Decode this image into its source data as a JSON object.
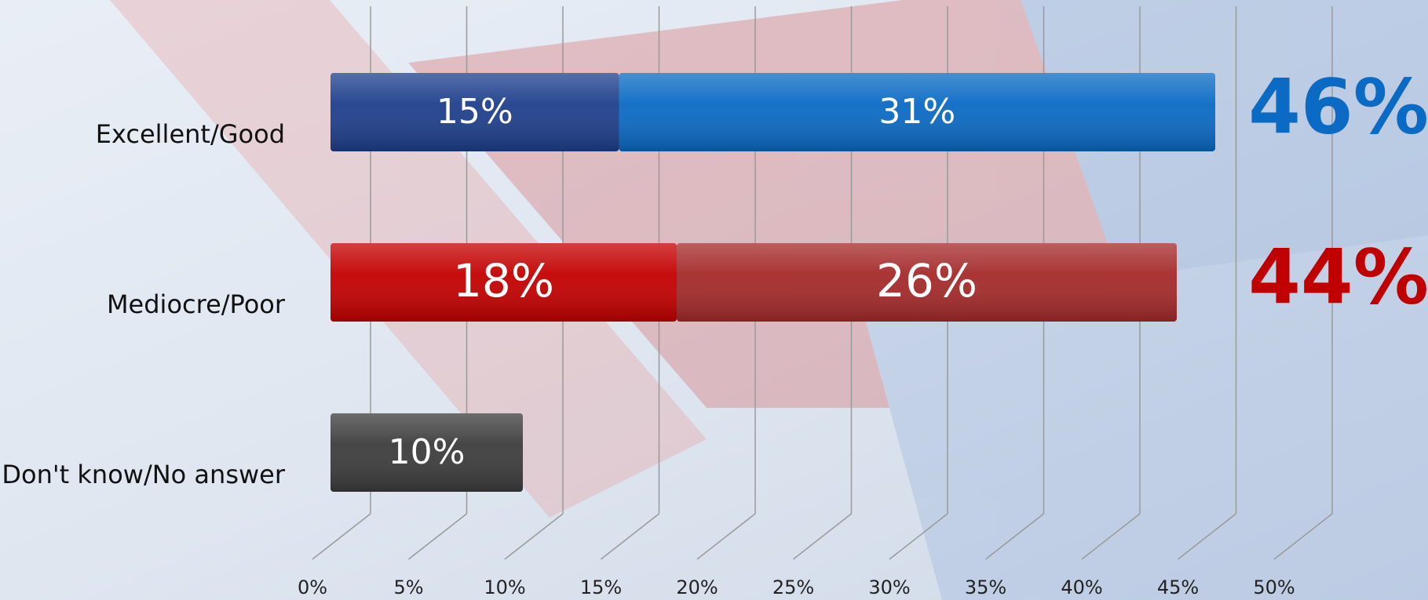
{
  "chart_data": {
    "type": "stacked-bar-horizontal",
    "categories": [
      "Excellent/Good",
      "Mediocre/Poor",
      "Don't know/No answer"
    ],
    "series": [
      {
        "colors": [
          "#1e3f8c",
          "#c40000",
          "#3c3c3c"
        ],
        "values": [
          15,
          18,
          10
        ],
        "value_labels": [
          "15%",
          "18%",
          "10%"
        ]
      },
      {
        "colors": [
          "#0a6ac4",
          "#a52a2a",
          null
        ],
        "values": [
          31,
          26,
          null
        ],
        "value_labels": [
          "31%",
          "26%",
          null
        ]
      }
    ],
    "totals": [
      46,
      44,
      null
    ],
    "total_labels": [
      "46%",
      "44%",
      null
    ],
    "total_colors": [
      "#0a6ac4",
      "#c00000",
      null
    ],
    "xlim": [
      0,
      50
    ],
    "xticks": [
      {
        "value": 0,
        "label": "0%"
      },
      {
        "value": 5,
        "label": "5%"
      },
      {
        "value": 10,
        "label": "10%"
      },
      {
        "value": 15,
        "label": "15%"
      },
      {
        "value": 20,
        "label": "20%"
      },
      {
        "value": 25,
        "label": "25%"
      },
      {
        "value": 30,
        "label": "30%"
      },
      {
        "value": 35,
        "label": "35%"
      },
      {
        "value": 40,
        "label": "40%"
      },
      {
        "value": 45,
        "label": "45%"
      },
      {
        "value": 50,
        "label": "50%"
      }
    ],
    "grid": true
  }
}
